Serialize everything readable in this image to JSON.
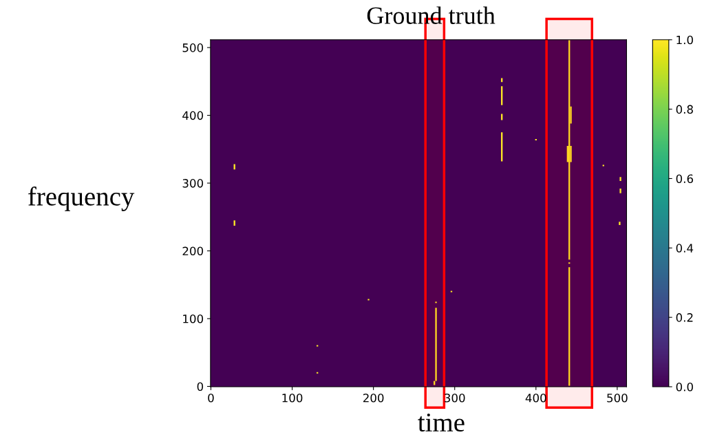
{
  "chart_data": {
    "type": "bar",
    "title": "Ground truth",
    "xlabel": "time",
    "ylabel": "frequency",
    "series": [
      {
        "color": "#fde725",
        "x": [
          29,
          131,
          194,
          275,
          277,
          296,
          358,
          400,
          439,
          441,
          443,
          483,
          503,
          504
        ],
        "base": [
          237,
          19,
          127,
          2,
          8,
          139,
          332,
          363,
          331,
          1,
          331,
          325,
          238,
          285
        ],
        "values": [
          8,
          2,
          2,
          6,
          108,
          2,
          43,
          2,
          24,
          175,
          24,
          2,
          5,
          7
        ]
      },
      {
        "color": "#fde725",
        "x": [
          29,
          131,
          277,
          358,
          441,
          443,
          504
        ],
        "base": [
          320,
          59,
          123,
          393,
          181,
          388,
          303
        ],
        "values": [
          8,
          2,
          2,
          9,
          2,
          25,
          6
        ]
      },
      {
        "color": "#fde725",
        "x": [
          358,
          441
        ],
        "base": [
          415,
          187
        ],
        "values": [
          28,
          324
        ]
      },
      {
        "color": "#fde725",
        "x": [
          358,
          441
        ],
        "base": [
          449,
          331
        ],
        "values": [
          6,
          24
        ]
      }
    ],
    "xlim": [
      -0.5,
      511.5
    ],
    "ylim": [
      -0.5,
      511.5
    ],
    "xticks": [
      0,
      100,
      200,
      300,
      400,
      500
    ],
    "yticks": [
      0,
      100,
      200,
      300,
      400,
      500
    ],
    "clim": [
      0.0,
      1.0
    ],
    "cticks": [
      {
        "value": 0,
        "label": "0.0"
      },
      {
        "value": 0.2,
        "label": "0.2"
      },
      {
        "value": 0.4,
        "label": "0.4"
      },
      {
        "value": 0.6,
        "label": "0.6"
      },
      {
        "value": 0.8,
        "label": "0.8"
      },
      {
        "value": 1.0,
        "label": "1.0"
      }
    ],
    "bands": [
      {
        "axis": "x",
        "from": 264,
        "to": 287,
        "color": "#ff0000"
      },
      {
        "axis": "x",
        "from": 413,
        "to": 469,
        "color": "#ff0000"
      }
    ],
    "grid": false,
    "legend": false
  }
}
